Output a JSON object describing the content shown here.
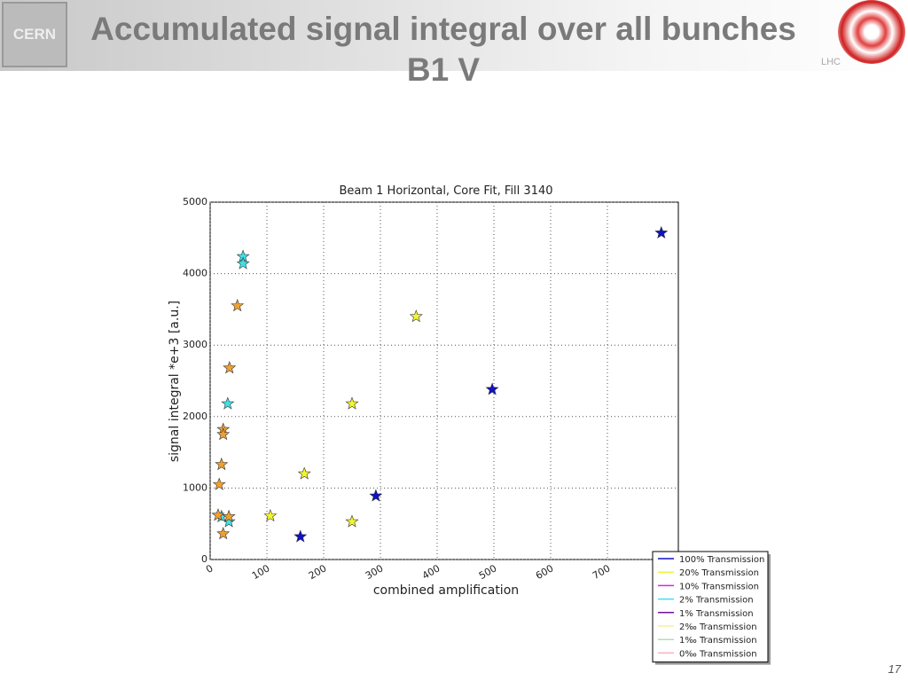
{
  "slide": {
    "title": "Accumulated signal integral over all bunches B1 V",
    "page_number": "17",
    "logo_left": "CERN",
    "logo_right": "LHC"
  },
  "chart_data": {
    "type": "scatter",
    "title": "Beam 1 Horizontal, Core Fit, Fill 3140",
    "x_label": "combined amplification",
    "y_label": "signal integral *e+3 [a.u.]",
    "xlim": [
      0,
      825
    ],
    "ylim": [
      0,
      5000
    ],
    "xticks": [
      0,
      100,
      200,
      300,
      400,
      500,
      600,
      700
    ],
    "yticks": [
      0,
      1000,
      2000,
      3000,
      4000,
      5000
    ],
    "grid": true,
    "legend_position": "outside-lower-right",
    "series": [
      {
        "name": "100% Transmission",
        "color": "#1010c8",
        "x": [
          795,
          497,
          292,
          159
        ],
        "values": [
          4570,
          2380,
          890,
          320
        ]
      },
      {
        "name": "20% Transmission",
        "color": "#f4f430",
        "x": [
          363,
          250,
          166,
          106,
          250
        ],
        "values": [
          3400,
          2180,
          1200,
          610,
          530
        ]
      },
      {
        "name": "10% Transmission",
        "color": "#e020e0",
        "x": [],
        "values": []
      },
      {
        "name": "2% Transmission",
        "color": "#40e0e8",
        "x": [
          58,
          58,
          31,
          33,
          20
        ],
        "values": [
          4240,
          4140,
          2180,
          530,
          600
        ]
      },
      {
        "name": "1% Transmission",
        "color": "#7010a0",
        "x": [],
        "values": []
      },
      {
        "name": "2‰ Transmission",
        "color": "#f4f0a0",
        "x": [],
        "values": []
      },
      {
        "name": "1‰ Transmission",
        "color": "#b0e0b0",
        "x": [],
        "values": []
      },
      {
        "name": "0‰ Transmission",
        "color": "#f8b0c0",
        "x": [],
        "values": []
      },
      {
        "color": "#f0a030",
        "x": [
          48,
          34,
          23,
          23,
          20,
          16,
          14,
          33,
          23
        ],
        "values": [
          3550,
          2680,
          1820,
          1750,
          1330,
          1050,
          620,
          600,
          360
        ]
      }
    ]
  }
}
